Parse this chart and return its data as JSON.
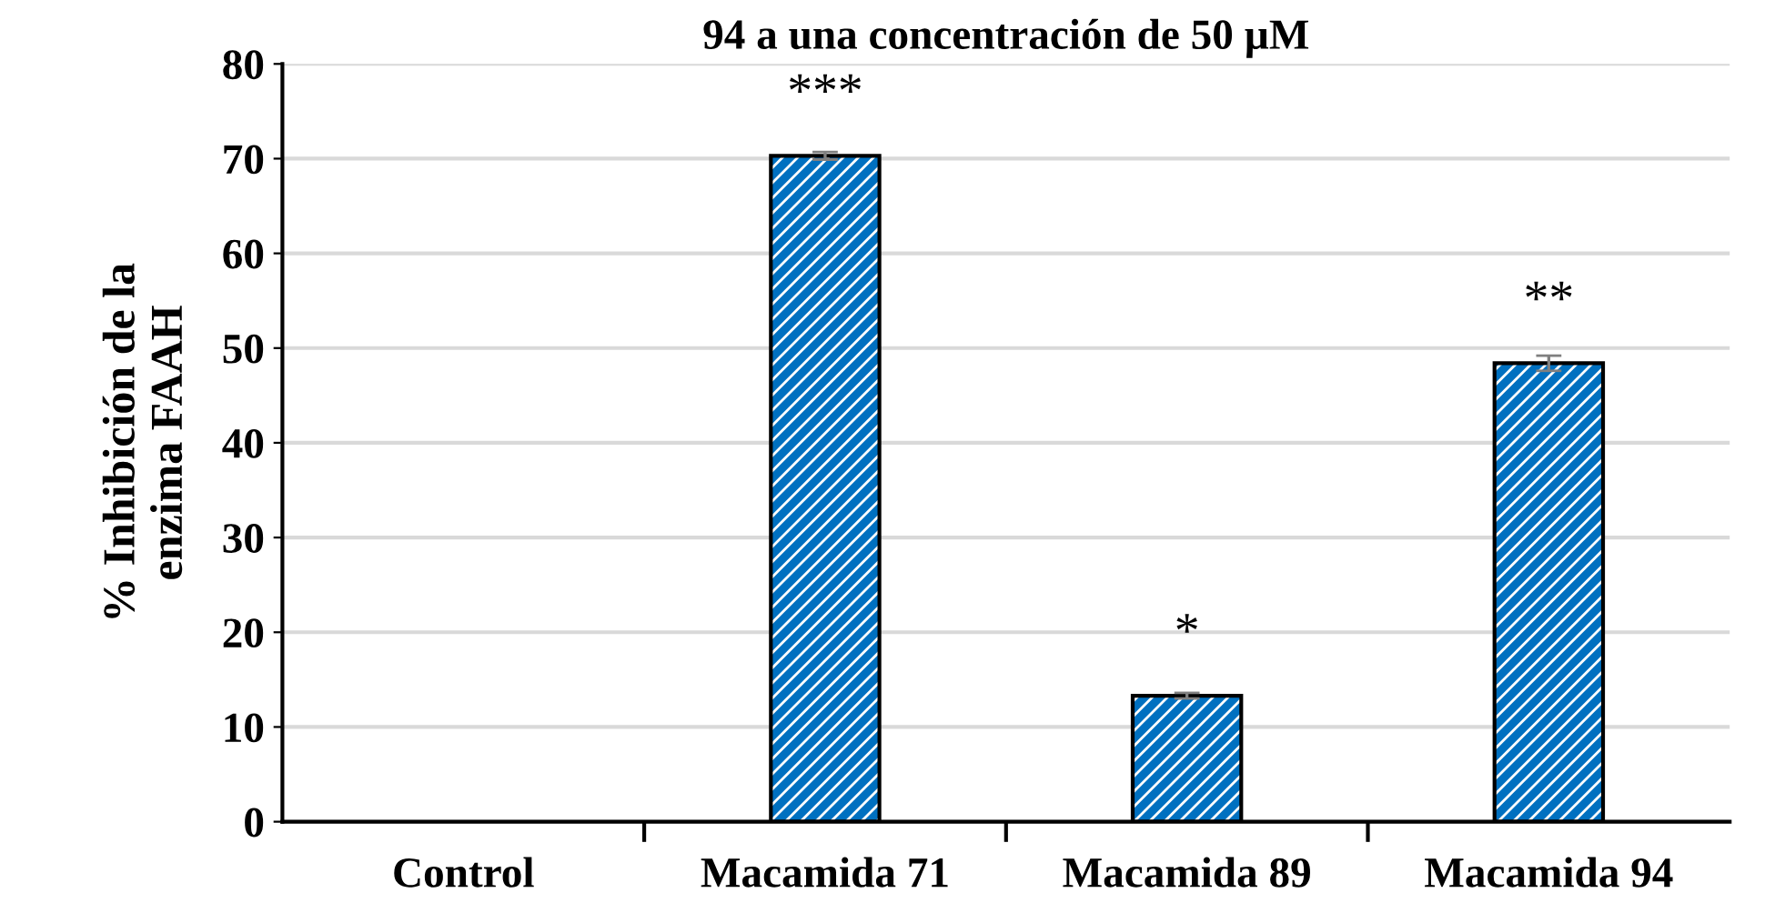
{
  "chart_data": {
    "type": "bar",
    "title": "94 a una concentración de 50 µM",
    "ylabel": "% Inhibición de la\nenzima FAAH",
    "categories": [
      "Control",
      "Macamida 71",
      "Macamida 89",
      "Macamida 94"
    ],
    "values": [
      0,
      70.3,
      13.3,
      48.4
    ],
    "errors": [
      null,
      0.4,
      0.3,
      0.8
    ],
    "color": "#0070c0",
    "ylim": [
      0,
      80
    ],
    "yticks": [
      0,
      10,
      20,
      30,
      40,
      50,
      60,
      70,
      80
    ],
    "grid": "y",
    "annotations": [
      "***",
      "*",
      "**"
    ]
  }
}
